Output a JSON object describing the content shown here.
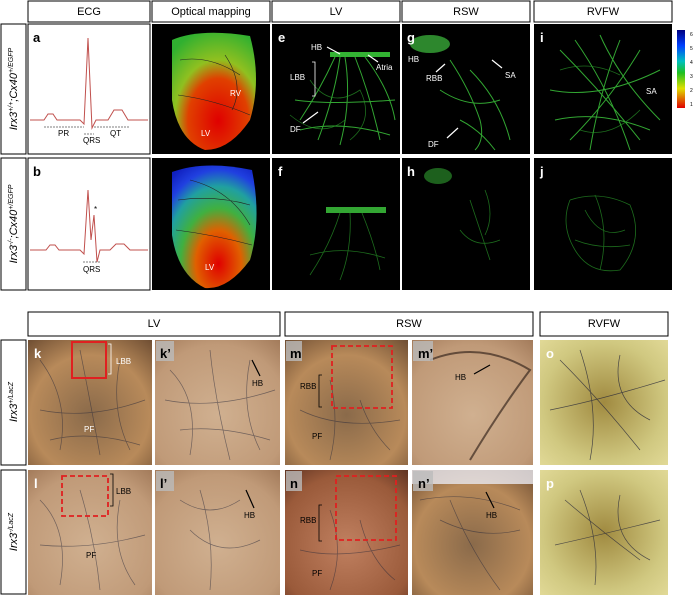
{
  "top": {
    "headers": [
      "ECG",
      "Optical mapping",
      "LV",
      "RSW",
      "RVFW"
    ],
    "rows": [
      {
        "label": [
          {
            "text": "Irx3"
          },
          {
            "text": "+/+",
            "sup": true
          },
          {
            "text": ";Cx40"
          },
          {
            "text": "+/EGFP",
            "sup": true
          }
        ],
        "panels": [
          "a",
          "c",
          "e",
          "g",
          "i"
        ]
      },
      {
        "label": [
          {
            "text": "Irx3"
          },
          {
            "text": "-/-",
            "sup": true
          },
          {
            "text": ";Cx40"
          },
          {
            "text": "+/EGFP",
            "sup": true
          }
        ],
        "panels": [
          "b",
          "d",
          "f",
          "h",
          "j"
        ]
      }
    ],
    "annotations": {
      "a": [
        "PR",
        "QRS",
        "QT"
      ],
      "b": [
        "*",
        "QRS"
      ],
      "c": [
        "RV",
        "LV"
      ],
      "d": [
        "LV"
      ],
      "e": [
        "HB",
        "Atria",
        "LBB",
        "DF"
      ],
      "g": [
        "HB",
        "RBB",
        "SA",
        "DF"
      ],
      "i": [
        "SA"
      ]
    },
    "colorbar": {
      "ticks": [
        6,
        5,
        4,
        3,
        2,
        1
      ]
    }
  },
  "bottom": {
    "headers": [
      "LV",
      "RSW",
      "RVFW"
    ],
    "rows": [
      {
        "label": [
          {
            "text": "Irx3"
          },
          {
            "text": "+/LacZ",
            "sup": true
          }
        ],
        "panels": [
          "k",
          "k’",
          "m",
          "m’",
          "o"
        ]
      },
      {
        "label": [
          {
            "text": "Irx3"
          },
          {
            "text": "-/LacZ",
            "sup": true
          }
        ],
        "panels": [
          "l",
          "l’",
          "n",
          "n’",
          "p"
        ]
      }
    ],
    "annotations": {
      "k": [
        "LBB",
        "PF"
      ],
      "k’": [
        "HB"
      ],
      "m": [
        "RBB",
        "PF"
      ],
      "m’": [
        "HB"
      ],
      "l": [
        "LBB",
        "PF"
      ],
      "l’": [
        "HB"
      ],
      "n": [
        "RBB",
        "PF"
      ],
      "n’": [
        "HB"
      ]
    }
  }
}
